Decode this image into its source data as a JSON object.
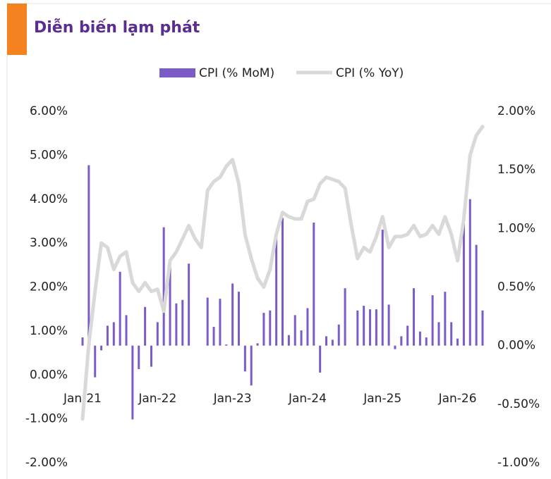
{
  "chart_data": {
    "type": "combo",
    "title": "Diễn biến lạm phát",
    "categories": [
      "Jan-21",
      null,
      null,
      null,
      null,
      null,
      null,
      null,
      null,
      null,
      null,
      null,
      "Jan-22",
      null,
      null,
      null,
      null,
      null,
      null,
      null,
      null,
      null,
      null,
      null,
      "Jan-23",
      null,
      null,
      null,
      null,
      null,
      null,
      null,
      null,
      null,
      null,
      null,
      "Jan-24",
      null,
      null,
      null,
      null,
      null,
      null,
      null,
      null,
      null,
      null,
      null,
      "Jan-25",
      null,
      null,
      null,
      null,
      null,
      null,
      null,
      null,
      null,
      null,
      null,
      "Jan-26",
      null,
      null,
      null,
      null
    ],
    "series": [
      {
        "name": "CPI (% MoM)",
        "type": "bar",
        "axis": "y2",
        "color": "#7b5cc6",
        "values": [
          0.07,
          1.54,
          -0.27,
          -0.04,
          0.17,
          0.2,
          0.63,
          0.26,
          -0.63,
          -0.2,
          0.33,
          -0.18,
          0.2,
          1.01,
          0.7,
          0.36,
          0.39,
          0.7,
          0,
          0,
          0.41,
          0.16,
          0.4,
          0.01,
          0.53,
          0.46,
          -0.22,
          -0.34,
          0.02,
          0.28,
          0.3,
          0.95,
          1.09,
          0.09,
          0.26,
          0.13,
          0.32,
          1.05,
          -0.23,
          0.08,
          0.05,
          0.18,
          0.49,
          0,
          0.3,
          0.34,
          0.31,
          0.31,
          0.99,
          0.35,
          -0.03,
          0.08,
          0.17,
          0.49,
          0.12,
          0.07,
          0.43,
          0.2,
          0.46,
          0.2,
          0.06,
          1.15,
          1.25,
          0.86,
          0.3
        ]
      },
      {
        "name": "CPI (% YoY)",
        "type": "line",
        "axis": "y",
        "color": "#d9d9d9",
        "values": [
          -1.0,
          0.7,
          1.9,
          3.0,
          2.9,
          2.4,
          2.7,
          2.8,
          2.1,
          1.9,
          2.1,
          1.9,
          1.95,
          1.45,
          2.6,
          2.8,
          3.1,
          3.4,
          3.1,
          2.9,
          4.2,
          4.4,
          4.5,
          4.75,
          4.9,
          4.35,
          3.2,
          2.65,
          2.2,
          2.0,
          2.4,
          3.2,
          3.7,
          3.6,
          3.55,
          3.55,
          3.95,
          4.0,
          4.35,
          4.5,
          4.45,
          4.4,
          4.25,
          3.4,
          2.65,
          2.9,
          2.8,
          3.15,
          3.6,
          2.9,
          3.15,
          3.15,
          3.2,
          3.4,
          3.15,
          3.2,
          3.4,
          3.2,
          3.6,
          3.2,
          2.6,
          3.55,
          5.0,
          5.45,
          5.65
        ]
      }
    ],
    "ylim": [
      -2,
      6
    ],
    "yticks": [
      {
        "value": -2,
        "label": "-2.00%"
      },
      {
        "value": -1,
        "label": "-1.00%"
      },
      {
        "value": 0,
        "label": "0.00%"
      },
      {
        "value": 1,
        "label": "1.00%"
      },
      {
        "value": 2,
        "label": "2.00%"
      },
      {
        "value": 3,
        "label": "3.00%"
      },
      {
        "value": 4,
        "label": "4.00%"
      },
      {
        "value": 5,
        "label": "5.00%"
      },
      {
        "value": 6,
        "label": "6.00%"
      }
    ],
    "y2lim": [
      -1,
      2
    ],
    "y2ticks": [
      {
        "value": -1,
        "label": "-1.00%"
      },
      {
        "value": -0.5,
        "label": "-0.50%"
      },
      {
        "value": 0,
        "label": "0.00%"
      },
      {
        "value": 0.5,
        "label": "0.50%"
      },
      {
        "value": 1,
        "label": "1.00%"
      },
      {
        "value": 1.5,
        "label": "1.50%"
      },
      {
        "value": 2,
        "label": "2.00%"
      }
    ],
    "legend": "top"
  }
}
